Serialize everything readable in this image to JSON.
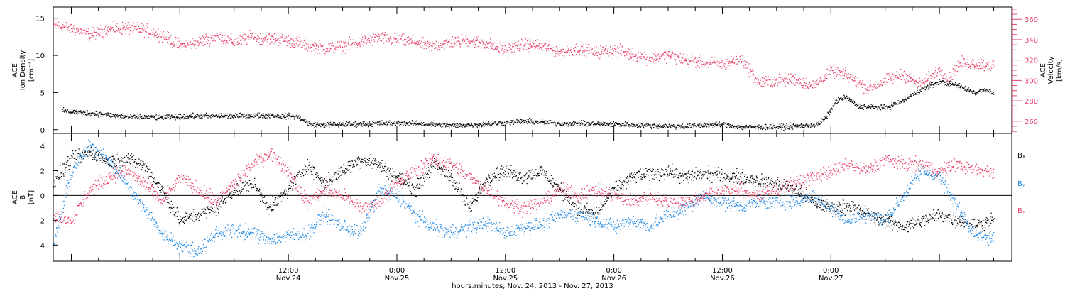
{
  "colors": {
    "density": "#000000",
    "velocity": "#e8426a",
    "bx": "#000000",
    "by": "#1e88e5",
    "bz": "#e8426a",
    "axes": "#000000"
  },
  "chart_data": [
    {
      "type": "scatter",
      "panel": "top",
      "x_range_hours": [
        -14,
        92
      ],
      "x_ticks": [
        {
          "time": "12:00",
          "date": "Nov.24"
        },
        {
          "time": "0:00",
          "date": "Nov.25"
        },
        {
          "time": "12:00",
          "date": "Nov.25"
        },
        {
          "time": "0:00",
          "date": "Nov.26"
        },
        {
          "time": "12:00",
          "date": "Nov.26"
        },
        {
          "time": "0:00",
          "date": "Nov.27"
        }
      ],
      "xlabel": "hours:minutes, Nov. 24, 2013 - Nov. 27, 2013",
      "left_axis": {
        "label_lines": [
          "ACE",
          "Ion Density",
          "[cm⁻³]"
        ],
        "ylim": [
          -0.5,
          16.5
        ],
        "ticks": [
          "0",
          "5",
          "10",
          "15"
        ]
      },
      "right_axis": {
        "label_lines": [
          "ACE",
          "Velocity",
          "[km/s]"
        ],
        "ylim": [
          248,
          372
        ],
        "ticks": [
          "260",
          "280",
          "300",
          "320",
          "340",
          "360"
        ]
      },
      "series": [
        {
          "key": "density",
          "points": [
            [
              -13,
              2.6
            ],
            [
              -10,
              2.3
            ],
            [
              -6,
              1.8
            ],
            [
              -2,
              1.7
            ],
            [
              2,
              1.9
            ],
            [
              6,
              1.9
            ],
            [
              10,
              2.0
            ],
            [
              13,
              1.8
            ],
            [
              14.5,
              0.7
            ],
            [
              20,
              0.8
            ],
            [
              24,
              1.0
            ],
            [
              30,
              0.6
            ],
            [
              34,
              0.8
            ],
            [
              38,
              1.2
            ],
            [
              42,
              0.9
            ],
            [
              48,
              0.8
            ],
            [
              52,
              0.6
            ],
            [
              56,
              0.5
            ],
            [
              60,
              0.8
            ],
            [
              62,
              0.4
            ],
            [
              66,
              0.4
            ],
            [
              69,
              0.6
            ],
            [
              70.5,
              0.7
            ],
            [
              71.5,
              1.8
            ],
            [
              72.5,
              3.8
            ],
            [
              73.5,
              4.5
            ],
            [
              75,
              3.2
            ],
            [
              78,
              3.0
            ],
            [
              80,
              4.0
            ],
            [
              82,
              5.5
            ],
            [
              84,
              6.5
            ],
            [
              86,
              6.0
            ],
            [
              88,
              5.0
            ],
            [
              89,
              5.5
            ],
            [
              90,
              5.0
            ]
          ]
        },
        {
          "key": "velocity",
          "points": [
            [
              -14,
              354
            ],
            [
              -12,
              352
            ],
            [
              -10,
              345
            ],
            [
              -8,
              350
            ],
            [
              -6,
              352
            ],
            [
              -4,
              350
            ],
            [
              -2,
              345
            ],
            [
              0,
              334
            ],
            [
              2,
              338
            ],
            [
              4,
              344
            ],
            [
              6,
              338
            ],
            [
              8,
              343
            ],
            [
              10,
              341
            ],
            [
              12,
              340
            ],
            [
              14,
              335
            ],
            [
              16,
              332
            ],
            [
              18,
              334
            ],
            [
              20,
              338
            ],
            [
              22,
              342
            ],
            [
              24,
              340
            ],
            [
              26,
              338
            ],
            [
              28,
              334
            ],
            [
              30,
              338
            ],
            [
              32,
              340
            ],
            [
              34,
              336
            ],
            [
              36,
              330
            ],
            [
              38,
              336
            ],
            [
              40,
              334
            ],
            [
              42,
              328
            ],
            [
              44,
              332
            ],
            [
              46,
              328
            ],
            [
              48,
              330
            ],
            [
              50,
              326
            ],
            [
              52,
              322
            ],
            [
              54,
              325
            ],
            [
              56,
              320
            ],
            [
              58,
              318
            ],
            [
              60,
              316
            ],
            [
              62,
              322
            ],
            [
              63,
              310
            ],
            [
              64,
              298
            ],
            [
              66,
              300
            ],
            [
              68,
              302
            ],
            [
              70,
              295
            ],
            [
              72,
              310
            ],
            [
              74,
              304
            ],
            [
              76,
              292
            ],
            [
              78,
              300
            ],
            [
              80,
              306
            ],
            [
              82,
              296
            ],
            [
              84,
              312
            ],
            [
              85,
              300
            ],
            [
              86,
              316
            ],
            [
              87,
              318
            ],
            [
              89,
              316
            ],
            [
              90,
              315
            ]
          ]
        }
      ]
    },
    {
      "type": "scatter",
      "panel": "bottom",
      "x_range_hours": [
        -14,
        92
      ],
      "left_axis": {
        "label_lines": [
          "ACE",
          "B",
          "[nT]"
        ],
        "ylim": [
          -5.3,
          5.0
        ],
        "ticks": [
          "-4",
          "-2",
          "0",
          "2",
          "4"
        ]
      },
      "legend": {
        "position": "right",
        "labels": [
          "Bₓ",
          "Bᵧ",
          "Bₓ"
        ]
      },
      "series": [
        {
          "key": "bx",
          "points": [
            [
              -14,
              1
            ],
            [
              -12,
              3
            ],
            [
              -10,
              3.5
            ],
            [
              -8,
              2.8
            ],
            [
              -6,
              3
            ],
            [
              -4,
              2.5
            ],
            [
              -2,
              0.5
            ],
            [
              0,
              -2
            ],
            [
              2,
              -1.5
            ],
            [
              4,
              -1
            ],
            [
              6,
              0.5
            ],
            [
              8,
              1
            ],
            [
              10,
              -1
            ],
            [
              12,
              0.5
            ],
            [
              14,
              2.5
            ],
            [
              16,
              1
            ],
            [
              18,
              2
            ],
            [
              20,
              3
            ],
            [
              22,
              2.5
            ],
            [
              24,
              1.5
            ],
            [
              26,
              0.5
            ],
            [
              28,
              2.5
            ],
            [
              30,
              1.5
            ],
            [
              32,
              -1
            ],
            [
              34,
              1.5
            ],
            [
              36,
              2
            ],
            [
              38,
              1.5
            ],
            [
              40,
              2
            ],
            [
              42,
              0.5
            ],
            [
              44,
              -1
            ],
            [
              46,
              -1.5
            ],
            [
              48,
              0.5
            ],
            [
              50,
              1.5
            ],
            [
              52,
              1.8
            ],
            [
              54,
              2
            ],
            [
              56,
              1.5
            ],
            [
              58,
              1.8
            ],
            [
              60,
              1.6
            ],
            [
              62,
              1.5
            ],
            [
              64,
              1.2
            ],
            [
              66,
              1
            ],
            [
              68,
              0.5
            ],
            [
              70,
              -0.5
            ],
            [
              72,
              -1
            ],
            [
              74,
              -0.8
            ],
            [
              76,
              -1.5
            ],
            [
              78,
              -2
            ],
            [
              80,
              -2.5
            ],
            [
              82,
              -2
            ],
            [
              84,
              -1.5
            ],
            [
              86,
              -2
            ],
            [
              88,
              -2.3
            ],
            [
              90,
              -2
            ]
          ]
        },
        {
          "key": "by",
          "points": [
            [
              -14,
              -4
            ],
            [
              -12,
              2
            ],
            [
              -10,
              4
            ],
            [
              -8,
              3
            ],
            [
              -6,
              1
            ],
            [
              -4,
              -1
            ],
            [
              -2,
              -3
            ],
            [
              0,
              -4
            ],
            [
              2,
              -4.5
            ],
            [
              4,
              -3
            ],
            [
              6,
              -2.8
            ],
            [
              8,
              -3
            ],
            [
              10,
              -3.5
            ],
            [
              12,
              -3.2
            ],
            [
              14,
              -3
            ],
            [
              16,
              -1.5
            ],
            [
              18,
              -2.5
            ],
            [
              20,
              -3
            ],
            [
              22,
              0.5
            ],
            [
              24,
              0
            ],
            [
              26,
              -1.5
            ],
            [
              28,
              -2.5
            ],
            [
              30,
              -3
            ],
            [
              32,
              -2.5
            ],
            [
              34,
              -2.2
            ],
            [
              36,
              -3
            ],
            [
              38,
              -2.5
            ],
            [
              40,
              -2.3
            ],
            [
              42,
              -1.5
            ],
            [
              44,
              -1.5
            ],
            [
              46,
              -2
            ],
            [
              48,
              -2.5
            ],
            [
              50,
              -2
            ],
            [
              52,
              -2.5
            ],
            [
              54,
              -1.5
            ],
            [
              56,
              -1
            ],
            [
              58,
              0
            ],
            [
              60,
              -0.5
            ],
            [
              62,
              -0.8
            ],
            [
              64,
              -0.5
            ],
            [
              66,
              -0.5
            ],
            [
              68,
              -0.5
            ],
            [
              70,
              0
            ],
            [
              72,
              -1
            ],
            [
              74,
              -2
            ],
            [
              76,
              -1.5
            ],
            [
              78,
              -2
            ],
            [
              80,
              0
            ],
            [
              82,
              2
            ],
            [
              84,
              1.5
            ],
            [
              86,
              -1
            ],
            [
              88,
              -3
            ],
            [
              90,
              -3.5
            ]
          ]
        },
        {
          "key": "bz",
          "points": [
            [
              -14,
              -1.5
            ],
            [
              -12,
              -2
            ],
            [
              -10,
              0.5
            ],
            [
              -8,
              1.5
            ],
            [
              -6,
              2
            ],
            [
              -4,
              1
            ],
            [
              -2,
              -0.5
            ],
            [
              0,
              1.5
            ],
            [
              2,
              0.5
            ],
            [
              4,
              -0.5
            ],
            [
              6,
              1
            ],
            [
              8,
              2.5
            ],
            [
              10,
              3.5
            ],
            [
              12,
              2
            ],
            [
              14,
              -0.5
            ],
            [
              16,
              0.5
            ],
            [
              18,
              0
            ],
            [
              20,
              -1
            ],
            [
              22,
              -0.5
            ],
            [
              24,
              1
            ],
            [
              26,
              2
            ],
            [
              28,
              3
            ],
            [
              30,
              2.5
            ],
            [
              32,
              1.5
            ],
            [
              34,
              0.5
            ],
            [
              36,
              -0.5
            ],
            [
              38,
              -1
            ],
            [
              40,
              -0.5
            ],
            [
              42,
              0.5
            ],
            [
              44,
              0
            ],
            [
              46,
              0.5
            ],
            [
              48,
              0
            ],
            [
              50,
              -0.5
            ],
            [
              52,
              0
            ],
            [
              54,
              -0.5
            ],
            [
              56,
              -0.5
            ],
            [
              58,
              0
            ],
            [
              60,
              0.5
            ],
            [
              62,
              0.5
            ],
            [
              64,
              0
            ],
            [
              66,
              0.5
            ],
            [
              68,
              1
            ],
            [
              70,
              1.5
            ],
            [
              72,
              2
            ],
            [
              74,
              2.5
            ],
            [
              76,
              2
            ],
            [
              78,
              3
            ],
            [
              80,
              2.5
            ],
            [
              82,
              2.5
            ],
            [
              84,
              2
            ],
            [
              86,
              2.5
            ],
            [
              88,
              2
            ],
            [
              90,
              2
            ]
          ]
        }
      ]
    }
  ]
}
